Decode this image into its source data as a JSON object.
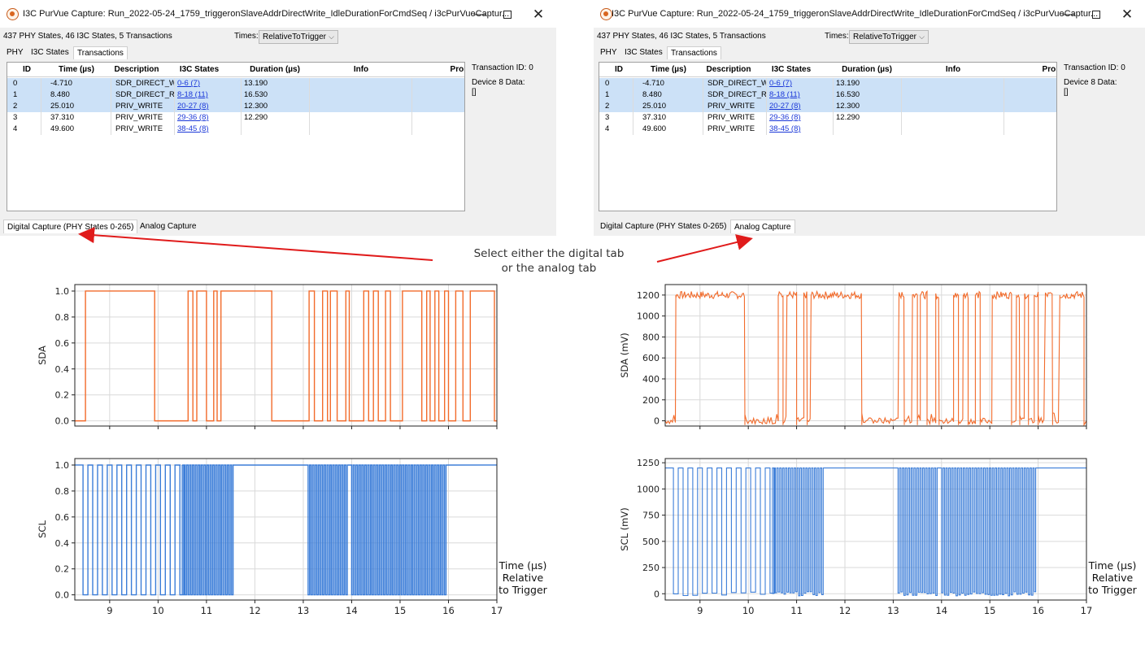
{
  "callout": {
    "line1": "Select either the digital tab",
    "line2": "or the analog tab"
  },
  "windows": [
    {
      "title": "I3C PurVue Capture: Run_2022-05-24_1759_triggeronSlaveAddrDirectWrite_IdleDurationForCmdSeq / i3cPurVueCaptur...",
      "summary": "437 PHY States, 46 I3C States, 5 Transactions",
      "times_label": "Times:",
      "times_value": "RelativeToTrigger",
      "tabs": [
        "PHY",
        "I3C States",
        "Transactions"
      ],
      "active_tab": "Transactions",
      "columns": [
        "ID",
        "Time (µs)",
        "Description",
        "I3C States",
        "Duration (µs)",
        "Info",
        "Prol"
      ],
      "rows": [
        {
          "id": "0",
          "time": "-4.710",
          "desc": "SDR_DIRECT_WR",
          "states": "0-6 (7)",
          "dur": "13.190",
          "selected": true
        },
        {
          "id": "1",
          "time": "8.480",
          "desc": "SDR_DIRECT_RE/",
          "states": "8-18 (11)",
          "dur": "16.530",
          "selected": true
        },
        {
          "id": "2",
          "time": "25.010",
          "desc": "PRIV_WRITE",
          "states": "20-27 (8)",
          "dur": "12.300",
          "selected": true
        },
        {
          "id": "3",
          "time": "37.310",
          "desc": "PRIV_WRITE",
          "states": "29-36 (8)",
          "dur": "12.290",
          "selected": false
        },
        {
          "id": "4",
          "time": "49.600",
          "desc": "PRIV_WRITE",
          "states": "38-45 (8)",
          "dur": "",
          "selected": false
        }
      ],
      "info_side": {
        "transaction_id": "Transaction ID: 0",
        "device_data": "Device 8 Data:",
        "data_value": "[]"
      },
      "bottom_tabs": [
        "Digital Capture (PHY States 0-265)",
        "Analog Capture"
      ],
      "active_bottom_tab": "Digital Capture (PHY States 0-265)"
    },
    {
      "title": "I3C PurVue Capture: Run_2022-05-24_1759_triggeronSlaveAddrDirectWrite_IdleDurationForCmdSeq / i3cPurVueCaptur...",
      "summary": "437 PHY States, 46 I3C States, 5 Transactions",
      "times_label": "Times:",
      "times_value": "RelativeToTrigger",
      "tabs": [
        "PHY",
        "I3C States",
        "Transactions"
      ],
      "active_tab": "Transactions",
      "columns": [
        "ID",
        "Time (µs)",
        "Description",
        "I3C States",
        "Duration (µs)",
        "Info",
        "Prol"
      ],
      "rows": [
        {
          "id": "0",
          "time": "-4.710",
          "desc": "SDR_DIRECT_WR",
          "states": "0-6 (7)",
          "dur": "13.190",
          "selected": true
        },
        {
          "id": "1",
          "time": "8.480",
          "desc": "SDR_DIRECT_RE/",
          "states": "8-18 (11)",
          "dur": "16.530",
          "selected": true
        },
        {
          "id": "2",
          "time": "25.010",
          "desc": "PRIV_WRITE",
          "states": "20-27 (8)",
          "dur": "12.300",
          "selected": true
        },
        {
          "id": "3",
          "time": "37.310",
          "desc": "PRIV_WRITE",
          "states": "29-36 (8)",
          "dur": "12.290",
          "selected": false
        },
        {
          "id": "4",
          "time": "49.600",
          "desc": "PRIV_WRITE",
          "states": "38-45 (8)",
          "dur": "",
          "selected": false
        }
      ],
      "info_side": {
        "transaction_id": "Transaction ID: 0",
        "device_data": "Device 8 Data:",
        "data_value": "[]"
      },
      "bottom_tabs": [
        "Digital Capture (PHY States 0-265)",
        "Analog Capture"
      ],
      "active_bottom_tab": "Analog Capture"
    }
  ],
  "chart_data": [
    {
      "type": "line",
      "panel": "digital",
      "series_name": "SDA",
      "color": "#f26b2b",
      "ylabel": "SDA",
      "ylim": [
        -0.04,
        1.05
      ],
      "yticks": [
        0.0,
        0.2,
        0.4,
        0.6,
        0.8,
        1.0
      ],
      "ytick_labels": [
        "0.0",
        "0.2",
        "0.4",
        "0.6",
        "0.8",
        "1.0"
      ],
      "xlim": [
        8.28,
        17.0
      ],
      "xticks": [
        9,
        10,
        11,
        12,
        13,
        14,
        15,
        16,
        17
      ],
      "high_intervals": [
        [
          8.5,
          9.93
        ],
        [
          10.62,
          10.72
        ],
        [
          10.8,
          11.0
        ],
        [
          11.15,
          11.22
        ],
        [
          11.3,
          12.35
        ],
        [
          13.12,
          13.23
        ],
        [
          13.4,
          13.5
        ],
        [
          13.56,
          13.7
        ],
        [
          13.88,
          13.95
        ],
        [
          14.25,
          14.35
        ],
        [
          14.45,
          14.55
        ],
        [
          14.7,
          14.8
        ],
        [
          15.05,
          15.45
        ],
        [
          15.55,
          15.62
        ],
        [
          15.72,
          15.8
        ],
        [
          15.92,
          16.0
        ],
        [
          16.15,
          16.3
        ],
        [
          16.45,
          16.95
        ]
      ]
    },
    {
      "type": "line",
      "panel": "digital",
      "series_name": "SCL",
      "color": "#3b7dd8",
      "ylabel": "SCL",
      "ylim": [
        -0.04,
        1.05
      ],
      "yticks": [
        0.0,
        0.2,
        0.4,
        0.6,
        0.8,
        1.0
      ],
      "ytick_labels": [
        "0.0",
        "0.2",
        "0.4",
        "0.6",
        "0.8",
        "1.0"
      ],
      "xlim": [
        8.28,
        17.0
      ],
      "xticks": [
        9,
        10,
        11,
        12,
        13,
        14,
        15,
        16,
        17
      ],
      "bursts": [
        {
          "start": 8.45,
          "end": 10.5,
          "period": 0.2,
          "duty": 0.5
        },
        {
          "start": 10.5,
          "end": 11.55,
          "period": 0.06,
          "duty": 0.5
        },
        {
          "start": 13.1,
          "end": 13.92,
          "period": 0.06,
          "duty": 0.5
        },
        {
          "start": 14.0,
          "end": 15.95,
          "period": 0.06,
          "duty": 0.5
        }
      ]
    },
    {
      "type": "line",
      "panel": "analog",
      "series_name": "SDA",
      "color": "#f26b2b",
      "ylabel": "SDA (mV)",
      "ylim": [
        -50,
        1300
      ],
      "yticks": [
        0,
        200,
        400,
        600,
        800,
        1000,
        1200
      ],
      "ytick_labels": [
        "0",
        "200",
        "400",
        "600",
        "800",
        "1000",
        "1200"
      ],
      "xlim": [
        8.28,
        17.0
      ],
      "xticks": [
        9,
        10,
        11,
        12,
        13,
        14,
        15,
        16,
        17
      ],
      "high_intervals": [
        [
          8.5,
          9.93
        ],
        [
          10.62,
          10.72
        ],
        [
          10.8,
          11.0
        ],
        [
          11.15,
          11.22
        ],
        [
          11.3,
          12.35
        ],
        [
          13.12,
          13.23
        ],
        [
          13.4,
          13.5
        ],
        [
          13.56,
          13.7
        ],
        [
          13.88,
          13.95
        ],
        [
          14.25,
          14.35
        ],
        [
          14.45,
          14.55
        ],
        [
          14.7,
          14.8
        ],
        [
          15.05,
          15.45
        ],
        [
          15.55,
          15.62
        ],
        [
          15.72,
          15.8
        ],
        [
          15.92,
          16.0
        ],
        [
          16.15,
          16.3
        ],
        [
          16.45,
          16.95
        ]
      ],
      "high_level": 1200,
      "low_level": 0
    },
    {
      "type": "line",
      "panel": "analog",
      "series_name": "SCL",
      "color": "#3b7dd8",
      "ylabel": "SCL (mV)",
      "ylim": [
        -60,
        1290
      ],
      "yticks": [
        0,
        250,
        500,
        750,
        1000,
        1250
      ],
      "ytick_labels": [
        "0",
        "250",
        "500",
        "750",
        "1000",
        "1250"
      ],
      "xlim": [
        8.28,
        17.0
      ],
      "xticks": [
        9,
        10,
        11,
        12,
        13,
        14,
        15,
        16,
        17
      ],
      "bursts": [
        {
          "start": 8.45,
          "end": 10.5,
          "period": 0.2,
          "duty": 0.5
        },
        {
          "start": 10.5,
          "end": 11.55,
          "period": 0.06,
          "duty": 0.5
        },
        {
          "start": 13.1,
          "end": 13.92,
          "period": 0.06,
          "duty": 0.5
        },
        {
          "start": 14.0,
          "end": 15.95,
          "period": 0.06,
          "duty": 0.5
        }
      ],
      "high_level": 1200,
      "low_level": 0
    }
  ],
  "xlabel": {
    "line1": "Time (µs)",
    "line2": "Relative",
    "line3": "to Trigger"
  }
}
